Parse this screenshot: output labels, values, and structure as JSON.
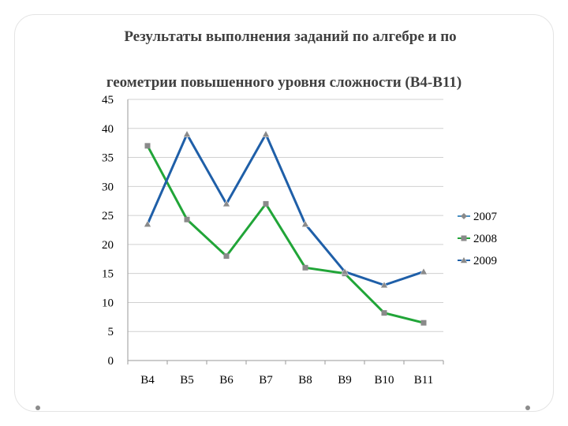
{
  "slide": {
    "title_line1": "Результаты выполнения заданий по алгебре и по",
    "title_line2": "геометрии повышенного уровня сложности (В4-В11)"
  },
  "colors": {
    "s2007": "#4a8fc2",
    "s2008": "#21a538",
    "s2009": "#1f5fa8",
    "marker": "#8a8a8a",
    "grid": "#d0d0d0"
  },
  "chart_data": {
    "type": "line",
    "title": "Результаты выполнения заданий по алгебре и по геометрии повышенного уровня сложности (В4-В11)",
    "categories": [
      "В4",
      "В5",
      "В6",
      "В7",
      "В8",
      "В9",
      "В10",
      "В11"
    ],
    "ylim": [
      0,
      45
    ],
    "yticks": [
      0,
      5,
      10,
      15,
      20,
      25,
      30,
      35,
      40,
      45
    ],
    "grid": true,
    "legend_position": "right",
    "series": [
      {
        "name": "2007",
        "marker": "diamond",
        "values": [
          null,
          null,
          null,
          null,
          null,
          null,
          null,
          null
        ]
      },
      {
        "name": "2008",
        "marker": "square",
        "values": [
          37,
          24.3,
          18,
          27,
          16,
          15,
          8.2,
          6.5
        ]
      },
      {
        "name": "2009",
        "marker": "triangle",
        "values": [
          23.5,
          39,
          27,
          39,
          23.5,
          15.3,
          13,
          15.3
        ]
      }
    ]
  }
}
